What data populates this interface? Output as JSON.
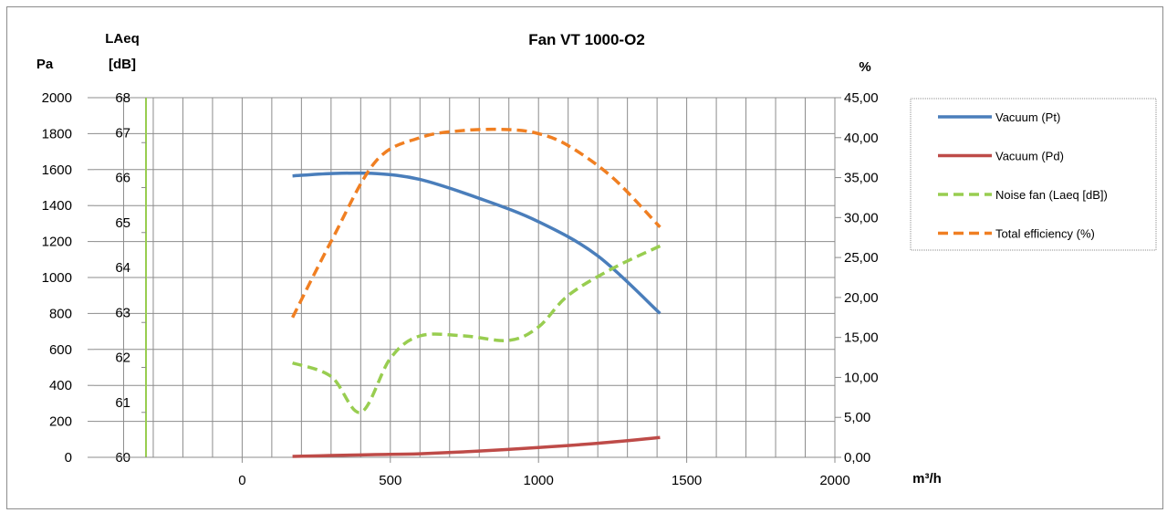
{
  "chart_data": {
    "type": "line",
    "title": "Fan VT 1000-O2",
    "x_axis": {
      "label": "m³/h",
      "range": [
        -500,
        2000
      ],
      "ticks": [
        0,
        500,
        1000,
        1500,
        2000
      ]
    },
    "y_left": {
      "label": "Pa",
      "range": [
        0,
        2000
      ],
      "ticks": [
        0,
        200,
        400,
        600,
        800,
        1000,
        1200,
        1400,
        1600,
        1800,
        2000
      ]
    },
    "y_left2": {
      "label_line1": "LAeq",
      "label_line2": "[dB]",
      "range": [
        60,
        68
      ],
      "ticks": [
        60,
        61,
        62,
        63,
        64,
        65,
        66,
        67,
        68
      ]
    },
    "y_right": {
      "label": "%",
      "range": [
        0,
        45
      ],
      "ticks": [
        "0,00",
        "5,00",
        "10,00",
        "15,00",
        "20,00",
        "25,00",
        "30,00",
        "35,00",
        "40,00",
        "45,00"
      ]
    },
    "grid": true,
    "legend_position": "right",
    "series": [
      {
        "name": "Vacuum (Pt)",
        "axis": "y_left",
        "color": "#4a7ebb",
        "dashed": false,
        "x": [
          170,
          300,
          450,
          600,
          800,
          1000,
          1200,
          1410
        ],
        "y": [
          1565,
          1578,
          1578,
          1545,
          1440,
          1310,
          1120,
          800
        ]
      },
      {
        "name": "Vacuum (Pd)",
        "axis": "y_left",
        "color": "#be4b48",
        "dashed": false,
        "x": [
          170,
          300,
          450,
          600,
          800,
          1000,
          1200,
          1410
        ],
        "y": [
          5,
          10,
          15,
          20,
          35,
          55,
          78,
          110
        ]
      },
      {
        "name": "Noise fan (Laeq [dB])",
        "axis": "y_left2",
        "color": "#98cd50",
        "dashed": true,
        "x": [
          170,
          300,
          400,
          500,
          600,
          750,
          900,
          1000,
          1100,
          1250,
          1410
        ],
        "y": [
          62.1,
          61.8,
          61.0,
          62.2,
          62.7,
          62.7,
          62.6,
          62.9,
          63.6,
          64.2,
          64.7
        ]
      },
      {
        "name": "Total efficiency (%)",
        "axis": "y_right",
        "color": "#f07f22",
        "dashed": true,
        "x": [
          170,
          300,
          450,
          600,
          750,
          900,
          1000,
          1100,
          1250,
          1410
        ],
        "y": [
          17.5,
          27,
          37,
          40,
          40.9,
          41,
          40.5,
          39,
          35,
          28.8
        ]
      }
    ]
  }
}
